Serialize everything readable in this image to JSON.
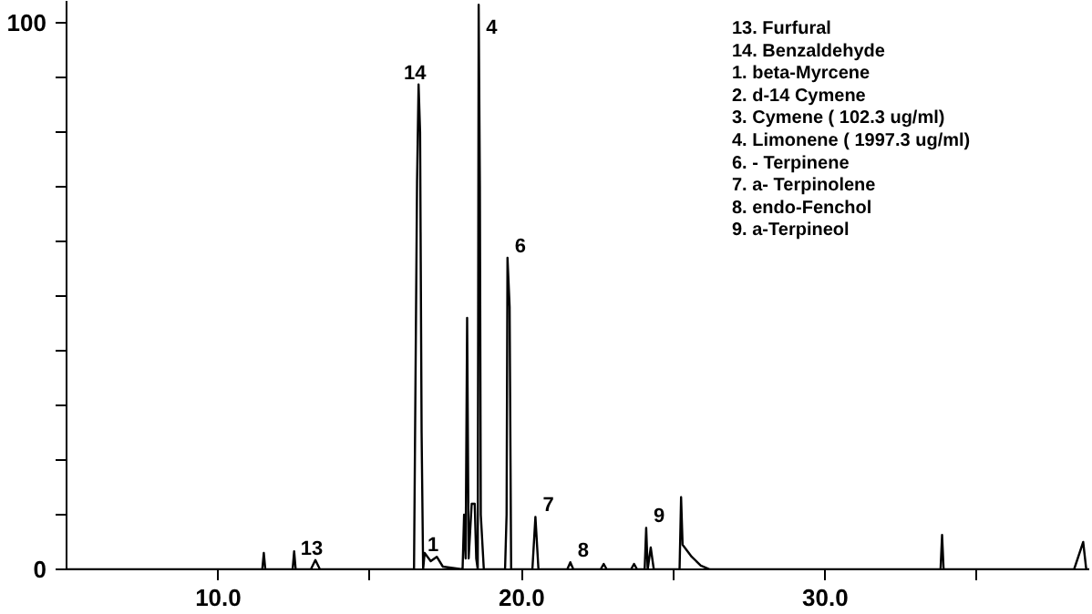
{
  "chart_data": {
    "type": "line",
    "x": [
      5.0,
      11.45,
      11.5,
      11.55,
      12.45,
      12.5,
      12.55,
      13.05,
      13.2,
      13.35,
      16.45,
      16.55,
      16.6,
      16.65,
      16.7,
      16.75,
      16.8,
      17.0,
      17.2,
      17.4,
      18.05,
      18.1,
      18.15,
      18.2,
      18.25,
      18.35,
      18.45,
      18.5,
      18.55,
      18.58,
      18.62,
      18.65,
      18.75,
      19.45,
      19.5,
      19.53,
      19.6,
      19.65,
      20.35,
      20.45,
      20.55,
      21.5,
      21.6,
      21.7,
      22.6,
      22.7,
      22.8,
      23.6,
      23.7,
      23.8,
      24.05,
      24.1,
      24.15,
      24.25,
      24.35,
      25.2,
      25.25,
      25.3,
      25.6,
      25.9,
      26.2,
      33.8,
      33.85,
      33.9,
      38.2,
      38.5,
      38.6,
      38.7
    ],
    "series": [
      {
        "color": "#000000",
        "values": [
          0,
          0,
          3,
          0,
          0,
          3.3,
          0,
          0,
          1.7,
          0,
          0,
          71,
          88.7,
          80,
          25,
          0,
          3,
          1.5,
          2.3,
          0.5,
          0,
          10,
          2,
          46,
          2,
          12,
          12,
          2,
          0,
          103.3,
          70,
          10,
          0,
          0,
          10,
          57,
          48,
          0,
          0,
          9.6,
          0,
          0,
          1.3,
          0,
          0,
          1,
          0,
          0,
          1,
          0,
          0,
          7.6,
          0,
          4,
          0,
          0,
          13.2,
          4.5,
          2.3,
          0.7,
          0,
          0,
          6.3,
          0,
          0,
          5,
          0,
          0
        ]
      }
    ],
    "xlim": [
      5.0,
      38.7
    ],
    "ylim": [
      0,
      104
    ],
    "xticks": [
      {
        "value": 10,
        "label": "10.0"
      },
      {
        "value": 15,
        "label": null
      },
      {
        "value": 20,
        "label": "20.0"
      },
      {
        "value": 25,
        "label": null
      },
      {
        "value": 30,
        "label": "30.0"
      },
      {
        "value": 35,
        "label": null
      }
    ],
    "yticks": [
      0,
      {
        "value": 10,
        "label": null
      },
      {
        "value": 20,
        "label": null
      },
      {
        "value": 30,
        "label": null
      },
      {
        "value": 40,
        "label": null
      },
      {
        "value": 50,
        "label": null
      },
      {
        "value": 60,
        "label": null
      },
      {
        "value": 70,
        "label": null
      },
      {
        "value": 80,
        "label": null
      },
      {
        "value": 90,
        "label": null
      },
      100
    ],
    "grid": false,
    "marker": "none",
    "line_style": "solid",
    "annotations": [
      {
        "text": "13",
        "x": 13.2,
        "y": 1.7
      },
      {
        "text": "14",
        "x": 16.6,
        "y": 88.7
      },
      {
        "text": "1",
        "x": 17.2,
        "y": 2.3
      },
      {
        "text": "4",
        "x": 18.58,
        "y": 103.3
      },
      {
        "text": "6",
        "x": 19.53,
        "y": 57
      },
      {
        "text": "7",
        "x": 20.45,
        "y": 9.6
      },
      {
        "text": "8",
        "x": 21.6,
        "y": 1.3
      },
      {
        "text": "9",
        "x": 24.1,
        "y": 7.6
      },
      "13. Furfural",
      "14. Benzaldehyde",
      "  1. beta-Myrcene",
      "  2. d-14 Cymene",
      "  3. Cymene ( 102.3 ug/ml)",
      "  4. Limonene ( 1997.3 ug/ml)",
      "  6. - Terpinene",
      "  7. a- Terpinolene",
      "  8. endo-Fenchol",
      "  9. a-Terpineol"
    ]
  }
}
